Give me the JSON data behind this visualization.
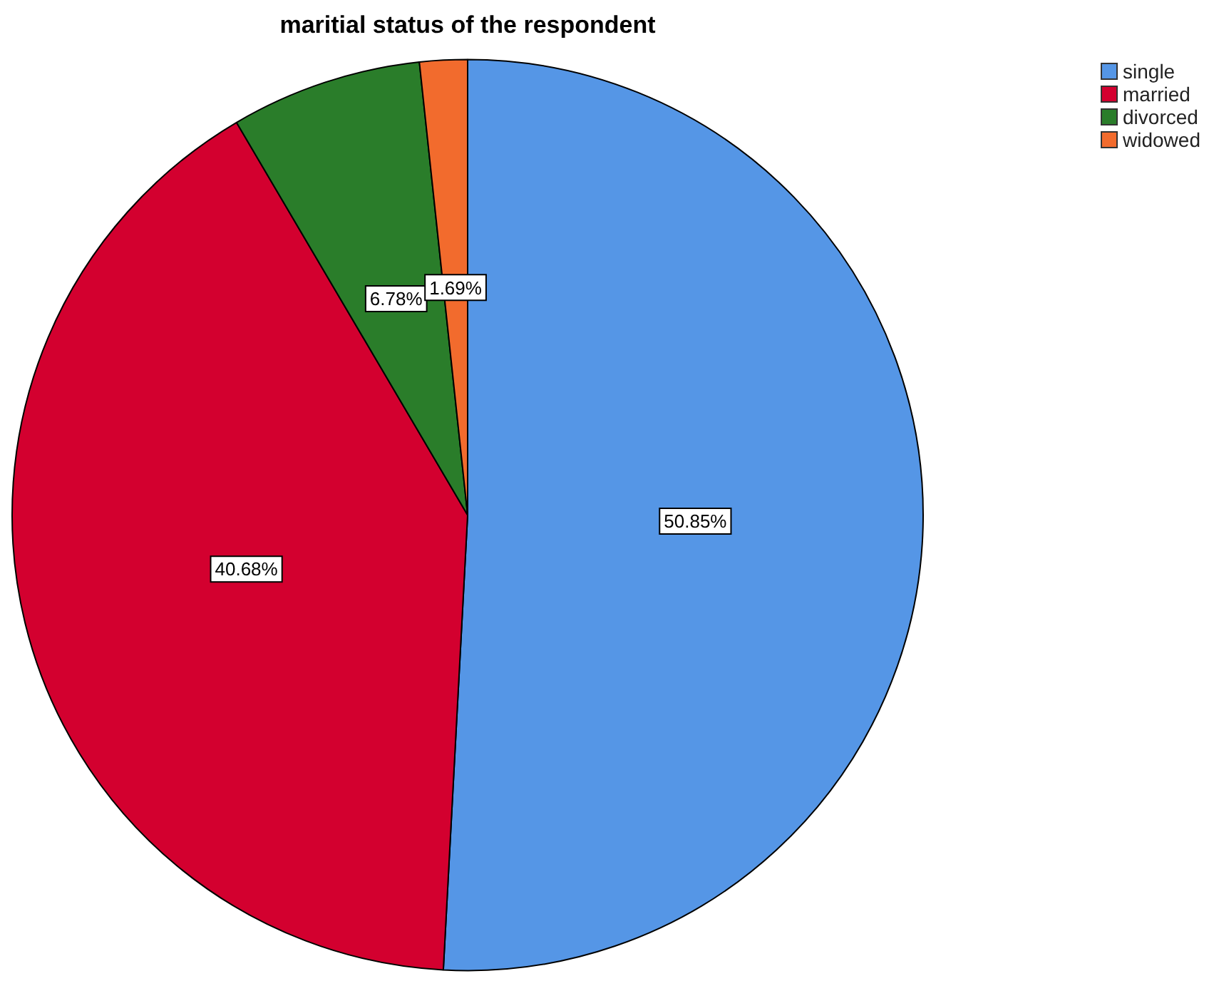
{
  "chart_data": {
    "type": "pie",
    "title": "maritial status of the respondent",
    "categories": [
      "single",
      "married",
      "divorced",
      "widowed"
    ],
    "values": [
      50.85,
      40.68,
      6.78,
      1.69
    ],
    "colors": [
      "#5596e6",
      "#d3002f",
      "#2a7d2a",
      "#f26b2d"
    ],
    "value_labels": [
      "50.85%",
      "40.68%",
      "6.78%",
      "1.69%"
    ],
    "legend": "top right"
  }
}
